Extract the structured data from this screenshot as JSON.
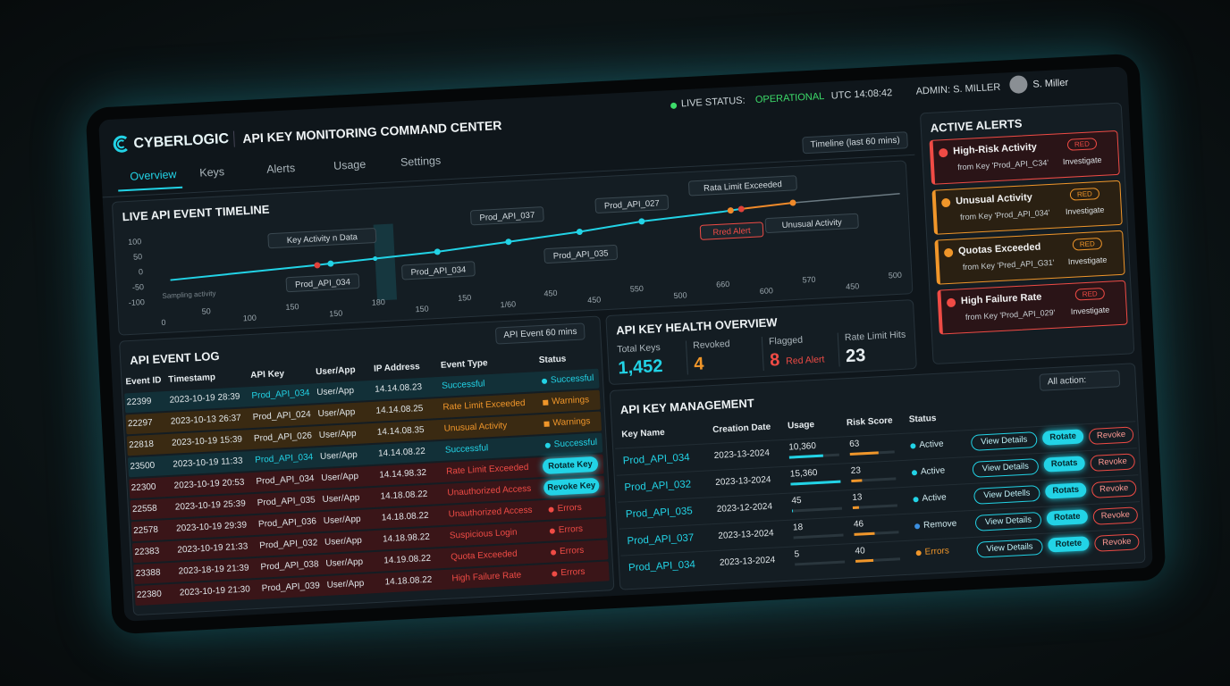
{
  "header": {
    "brand": "CYBERLOGIC",
    "title": "API KEY MONITORING COMMAND CENTER",
    "status_label": "LIVE STATUS:",
    "status_value": "OPERATIONAL",
    "clock": "UTC 14:08:42",
    "admin": "ADMIN: S. MILLER",
    "user": "S. Miller"
  },
  "nav": {
    "tabs": [
      "Overview",
      "Keys",
      "Alerts",
      "Usage",
      "Settings"
    ],
    "active": 0,
    "timeline_filter": "Timeline (last 60 mins)"
  },
  "timeline": {
    "title": "LIVE API EVENT TIMELINE",
    "y_labels": [
      "100",
      "50",
      "0",
      "-50",
      "-100"
    ],
    "x_labels": [
      "0",
      "50",
      "100",
      "150",
      "150",
      "180",
      "150",
      "150",
      "1/60",
      "450",
      "450",
      "550",
      "500",
      "660",
      "600",
      "570",
      "450",
      "500"
    ],
    "note": "Sampling activity",
    "callouts": [
      {
        "text": "Key Activity n Data",
        "tone": "plain"
      },
      {
        "text": "Prod_API_034",
        "tone": "plain"
      },
      {
        "text": "Prod_API_034",
        "tone": "plain"
      },
      {
        "text": "Prod_API_037",
        "tone": "plain"
      },
      {
        "text": "Prod_API_035",
        "tone": "plain"
      },
      {
        "text": "Prod_API_027",
        "tone": "plain"
      },
      {
        "text": "Rata Limit Exceeded",
        "tone": "plain"
      },
      {
        "text": "Rred Alert",
        "tone": "red"
      },
      {
        "text": "Unusual Activity",
        "tone": "plain"
      }
    ]
  },
  "alerts": {
    "title": "ACTIVE ALERTS",
    "items": [
      {
        "title": "High-Risk Activity",
        "source": "from Key 'Prod_API_C34'",
        "badge": "RED",
        "action": "Investigate",
        "tone": "red"
      },
      {
        "title": "Unusual Activity",
        "source": "from Key 'Prod_API_034'",
        "badge": "RED",
        "action": "Investigate",
        "tone": "orange"
      },
      {
        "title": "Quotas Exceeded",
        "source": "from Key 'Pred_API_G31'",
        "badge": "RED",
        "action": "Investigate",
        "tone": "orange"
      },
      {
        "title": "High Failure Rate",
        "source": "from Key 'Prod_API_029'",
        "badge": "RED",
        "action": "Investigate",
        "tone": "red"
      }
    ]
  },
  "health": {
    "title": "API KEY HEALTH OVERVIEW",
    "metrics": [
      {
        "label": "Total Keys",
        "value": "1,452",
        "tone": "teal"
      },
      {
        "label": "Revoked",
        "value": "4",
        "tone": "orange"
      },
      {
        "label": "Flagged",
        "value": "8",
        "note": "Red Alert",
        "tone": "red"
      },
      {
        "label": "Rate Limit Hits",
        "value": "23",
        "tone": "white"
      }
    ]
  },
  "event_log": {
    "title": "API EVENT LOG",
    "filter": "API Event 60 mins",
    "columns": [
      "Event ID",
      "Timestamp",
      "API Key",
      "User/App",
      "IP Address",
      "Event Type",
      "Status"
    ],
    "rows": [
      {
        "cells": [
          "22399",
          "2023-10-19 28:39",
          "Prod_API_034",
          "User/App",
          "14.14.08.23",
          "Successful"
        ],
        "status": "Successful",
        "tone": "teal",
        "kind": "dot"
      },
      {
        "cells": [
          "22297",
          "2023-10-13 26:37",
          "Prod_API_024",
          "User/App",
          "14.14.08.25",
          "Rate Limit Exceeded"
        ],
        "status": "Warnings",
        "tone": "orange",
        "kind": "warn"
      },
      {
        "cells": [
          "22818",
          "2023-10-19 15:39",
          "Prod_API_026",
          "User/App",
          "14.14.08.35",
          "Unusual Activity"
        ],
        "status": "Warnings",
        "tone": "orange",
        "kind": "warn"
      },
      {
        "cells": [
          "23500",
          "2023-10-19 11:33",
          "Prod_API_034",
          "User/App",
          "14.14.08.22",
          "Successful"
        ],
        "status": "Successful",
        "tone": "teal",
        "kind": "dot"
      },
      {
        "cells": [
          "22300",
          "2023-10-19 20:53",
          "Prod_API_034",
          "User/App",
          "14.14.98.32",
          "Rate Limit Exceeded"
        ],
        "status": "Rotate Key",
        "tone": "red",
        "kind": "button"
      },
      {
        "cells": [
          "22558",
          "2023-10-19 25:39",
          "Prod_API_035",
          "User/App",
          "14.18.08.22",
          "Unauthorized Access"
        ],
        "status": "Revoke Key",
        "tone": "red",
        "kind": "button"
      },
      {
        "cells": [
          "22578",
          "2023-10-19 29:39",
          "Prod_API_036",
          "User/App",
          "14.18.08.22",
          "Unauthorized Access"
        ],
        "status": "Errors",
        "tone": "red",
        "kind": "dot"
      },
      {
        "cells": [
          "22383",
          "2023-10-19 21:33",
          "Prod_API_032",
          "User/App",
          "14.18.98.22",
          "Suspicious Login"
        ],
        "status": "Errors",
        "tone": "red",
        "kind": "dot"
      },
      {
        "cells": [
          "23388",
          "2023-18-19 21:39",
          "Prod_API_038",
          "User/App",
          "14.19.08.22",
          "Quota Exceeded"
        ],
        "status": "Errors",
        "tone": "red",
        "kind": "dot"
      },
      {
        "cells": [
          "22380",
          "2023-10-19 21:30",
          "Prod_API_039",
          "User/App",
          "14.18.08.22",
          "High Failure Rate"
        ],
        "status": "Errors",
        "tone": "red",
        "kind": "dot"
      }
    ]
  },
  "key_management": {
    "title": "API KEY MANAGEMENT",
    "filter": "All action:",
    "columns": [
      "Key Name",
      "Creation Date",
      "Usage",
      "Risk Score",
      "Status"
    ],
    "rows": [
      {
        "name": "Prod_API_034",
        "date": "2023-13-2024",
        "usage": {
          "value": 10360,
          "label": "10,360"
        },
        "risk": 63,
        "status": "Active",
        "tone": "teal",
        "actions": [
          "View Details",
          "Rotate",
          "Revoke"
        ]
      },
      {
        "name": "Prod_API_032",
        "date": "2023-13-2024",
        "usage": {
          "value": 15360,
          "label": "15,360"
        },
        "risk": 23,
        "status": "Active",
        "tone": "teal",
        "actions": [
          "View Details",
          "Rotats",
          "Revoke"
        ]
      },
      {
        "name": "Prod_API_035",
        "date": "2023-12-2024",
        "usage": 45,
        "risk": 13,
        "status": "Active",
        "tone": "teal",
        "actions": [
          "View Detells",
          "Rotats",
          "Revoke"
        ]
      },
      {
        "name": "Prod_API_037",
        "date": "2023-13-2024",
        "usage": 18,
        "risk": 46,
        "status": "Remove",
        "tone": "blue",
        "actions": [
          "View Details",
          "Rotate",
          "Revoke"
        ]
      },
      {
        "name": "Prod_API_034",
        "date": "2023-13-2024",
        "usage": 5,
        "risk": 40,
        "status": "Errors",
        "tone": "orange",
        "actions": [
          "View Details",
          "Rotete",
          "Revoke"
        ]
      }
    ]
  }
}
